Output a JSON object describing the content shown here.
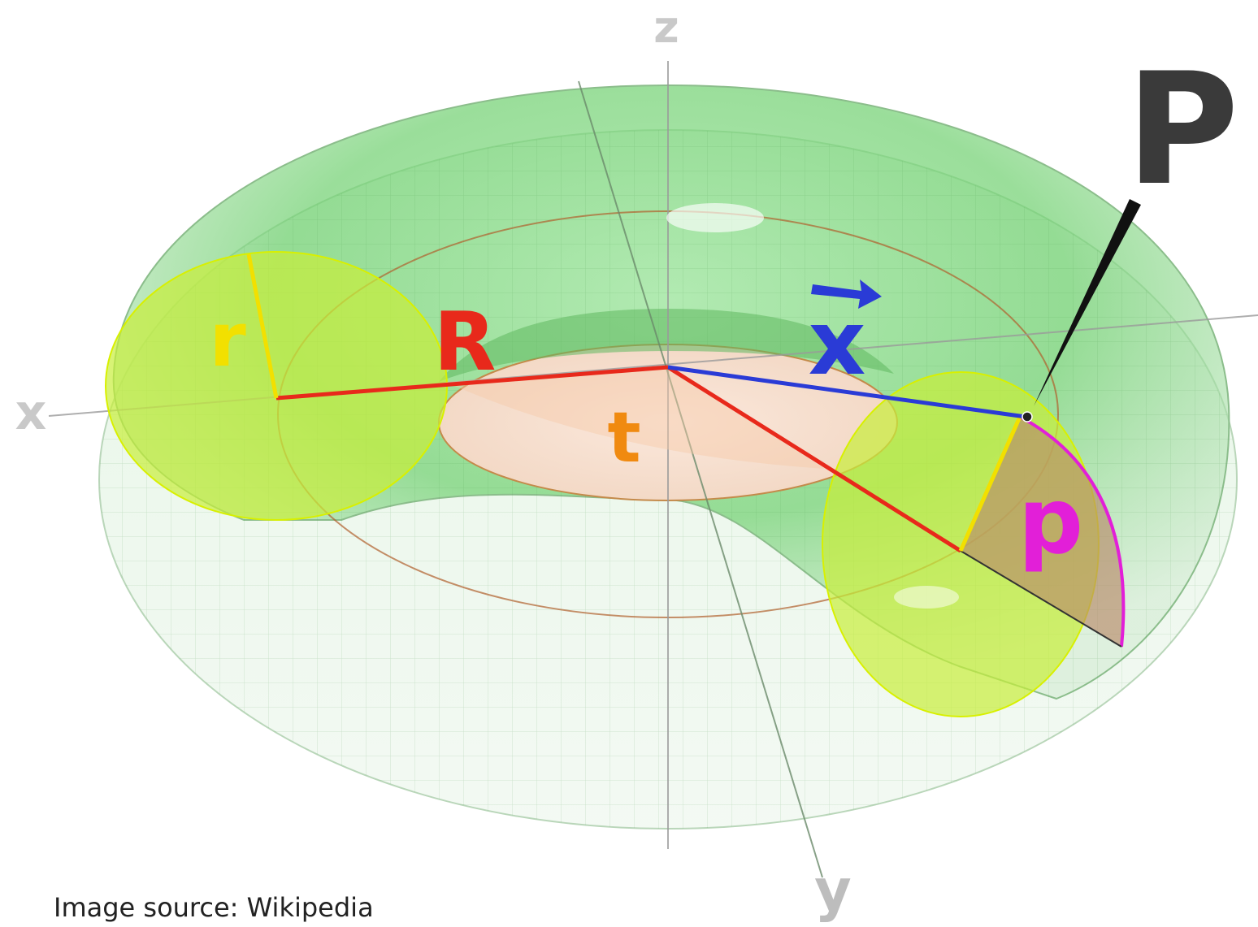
{
  "labels": {
    "axis_x": "x",
    "axis_y": "y",
    "axis_z": "z",
    "minor_radius": "r",
    "major_radius": "R",
    "angle_t": "t",
    "angle_p": "p",
    "vector_x": "x",
    "point": "P"
  },
  "caption": "Image source: Wikipedia",
  "colors": {
    "torus": "#4cc84c",
    "cross_section": "#c8ee3a",
    "major_radius": "#e8291b",
    "minor_radius": "#f2e000",
    "vector": "#2a3bd6",
    "angle_t": "#f08a10",
    "angle_p": "#e21fd8",
    "point": "#3a3a3a",
    "axis": "#b8b8b8"
  }
}
